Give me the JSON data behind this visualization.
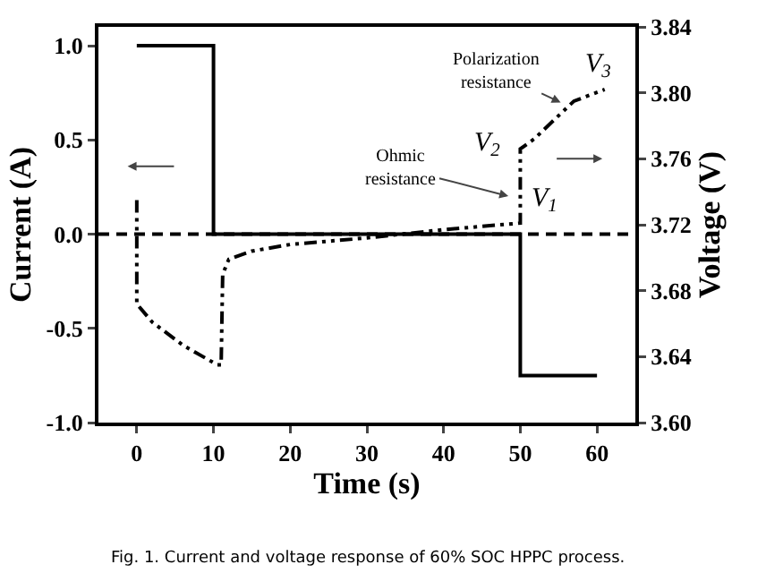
{
  "chart_data": {
    "type": "line",
    "xlabel": "Time (s)",
    "ylabel": "Current (A)",
    "y2label": "Voltage (V)",
    "xlim": [
      -5,
      65
    ],
    "xticks": [
      0,
      10,
      20,
      30,
      40,
      50,
      60
    ],
    "ylim": [
      -1,
      1.1
    ],
    "yticks": [
      {
        "value": -1,
        "label": "-1.0"
      },
      -0.5,
      {
        "value": 0,
        "label": "0.0"
      },
      0.5,
      {
        "value": 1,
        "label": "1.0"
      }
    ],
    "y2lim": [
      3.6,
      3.84
    ],
    "y2ticks": [
      {
        "value": 3.6,
        "label": "3.60"
      },
      3.64,
      3.68,
      3.72,
      3.76,
      {
        "value": 3.8,
        "label": "3.80"
      },
      3.84
    ],
    "grid": false,
    "series": [
      {
        "type": "step",
        "color": "#000000",
        "line_style": "solid",
        "x": [
          0,
          10,
          50,
          60
        ],
        "values": [
          1,
          0,
          -0.75,
          -0.75
        ]
      },
      {
        "axis": "y2",
        "color": "#000000",
        "line_style": "dotted",
        "x": [
          0,
          0,
          2,
          6,
          10.5,
          11,
          11.2,
          12,
          15,
          20,
          25,
          30,
          40,
          50,
          50,
          51.8,
          57,
          61
        ],
        "values": [
          3.735,
          3.672,
          3.661,
          3.647,
          3.635,
          3.635,
          3.69,
          3.699,
          3.704,
          3.708,
          3.71,
          3.712,
          3.717,
          3.721,
          3.766,
          3.772,
          3.795,
          3.802
        ]
      }
    ],
    "ref_lines": [
      {
        "axis": "y",
        "value": 0,
        "line_style": "dashed",
        "color": "#000000"
      }
    ],
    "annotations": [
      "V$_{1}$",
      "V$_{2}$",
      "V$_{3}$",
      "Ohmic\nresistance",
      "Polarization\nresistance",
      "Fig. 1. Current and voltage response of 60% SOC HPPC process."
    ]
  }
}
